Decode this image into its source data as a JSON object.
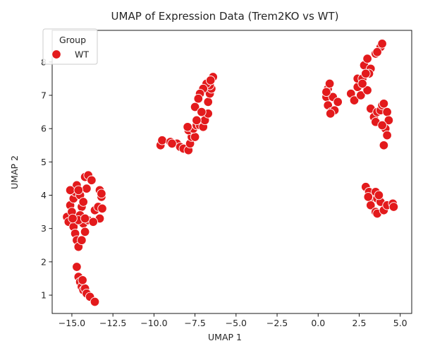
{
  "chart_data": {
    "type": "scatter",
    "title": "UMAP of Expression Data (Trem2KO vs WT)",
    "xlabel": "UMAP 1",
    "ylabel": "UMAP 2",
    "xlim": [
      -16.2,
      5.7
    ],
    "ylim": [
      0.45,
      8.95
    ],
    "xticks": [
      -15.0,
      -12.5,
      -10.0,
      -7.5,
      -5.0,
      -2.5,
      0.0,
      2.5,
      5.0
    ],
    "xtick_labels": [
      "−15.0",
      "−12.5",
      "−10.0",
      "−7.5",
      "−5.0",
      "−2.5",
      "0.0",
      "2.5",
      "5.0"
    ],
    "yticks": [
      1,
      2,
      3,
      4,
      5,
      6,
      7,
      8
    ],
    "ytick_labels": [
      "1",
      "2",
      "3",
      "4",
      "5",
      "6",
      "7",
      "8"
    ],
    "grid": false,
    "legend": {
      "title": "Group",
      "placement": "top-left",
      "entries": [
        {
          "label": "WT",
          "color": "#e31a1c"
        }
      ]
    },
    "series": [
      {
        "name": "WT",
        "color": "#e31a1c",
        "points": [
          [
            -15.3,
            3.35
          ],
          [
            -15.2,
            3.2
          ],
          [
            -15.1,
            3.7
          ],
          [
            -15.0,
            3.5
          ],
          [
            -14.9,
            3.05
          ],
          [
            -14.8,
            2.85
          ],
          [
            -14.7,
            2.65
          ],
          [
            -14.6,
            2.45
          ],
          [
            -14.9,
            3.9
          ],
          [
            -14.8,
            4.1
          ],
          [
            -14.7,
            4.3
          ],
          [
            -14.5,
            4.0
          ],
          [
            -14.4,
            3.65
          ],
          [
            -14.5,
            3.4
          ],
          [
            -14.3,
            3.15
          ],
          [
            -14.2,
            2.9
          ],
          [
            -14.4,
            2.65
          ],
          [
            -14.0,
            3.25
          ],
          [
            -14.1,
            4.2
          ],
          [
            -14.2,
            4.55
          ],
          [
            -14.0,
            4.6
          ],
          [
            -13.8,
            4.45
          ],
          [
            -13.6,
            3.55
          ],
          [
            -13.4,
            3.65
          ],
          [
            -13.3,
            4.15
          ],
          [
            -13.2,
            3.95
          ],
          [
            -13.15,
            3.6
          ],
          [
            -13.3,
            3.3
          ],
          [
            -13.7,
            3.2
          ],
          [
            -15.1,
            4.15
          ],
          [
            -14.6,
            3.25
          ],
          [
            -14.6,
            4.15
          ],
          [
            -14.2,
            3.3
          ],
          [
            -13.2,
            4.05
          ],
          [
            -14.95,
            3.3
          ],
          [
            -14.3,
            3.8
          ],
          [
            -14.7,
            1.85
          ],
          [
            -14.6,
            1.55
          ],
          [
            -14.5,
            1.4
          ],
          [
            -14.4,
            1.25
          ],
          [
            -14.3,
            1.15
          ],
          [
            -14.2,
            1.2
          ],
          [
            -14.1,
            1.05
          ],
          [
            -13.9,
            0.95
          ],
          [
            -13.6,
            0.8
          ],
          [
            -14.35,
            1.45
          ],
          [
            -9.6,
            5.5
          ],
          [
            -9.5,
            5.65
          ],
          [
            -9.0,
            5.6
          ],
          [
            -8.6,
            5.55
          ],
          [
            -8.4,
            5.45
          ],
          [
            -8.2,
            5.4
          ],
          [
            -7.9,
            5.35
          ],
          [
            -7.8,
            5.55
          ],
          [
            -7.7,
            5.75
          ],
          [
            -7.5,
            5.75
          ],
          [
            -7.9,
            5.95
          ],
          [
            -7.6,
            6.0
          ],
          [
            -7.4,
            6.1
          ],
          [
            -7.2,
            6.1
          ],
          [
            -7.0,
            6.05
          ],
          [
            -6.9,
            6.25
          ],
          [
            -6.7,
            6.45
          ],
          [
            -6.7,
            6.8
          ],
          [
            -6.6,
            7.05
          ],
          [
            -6.5,
            7.2
          ],
          [
            -6.6,
            7.3
          ],
          [
            -6.4,
            7.55
          ],
          [
            -6.8,
            7.35
          ],
          [
            -7.0,
            7.2
          ],
          [
            -7.2,
            7.05
          ],
          [
            -7.3,
            6.9
          ],
          [
            -7.5,
            6.65
          ],
          [
            -7.4,
            6.25
          ],
          [
            -7.1,
            6.5
          ],
          [
            -7.95,
            6.05
          ],
          [
            -6.55,
            7.45
          ],
          [
            -8.9,
            5.55
          ],
          [
            0.5,
            6.95
          ],
          [
            0.6,
            6.7
          ],
          [
            0.8,
            6.5
          ],
          [
            0.6,
            7.2
          ],
          [
            0.7,
            7.35
          ],
          [
            0.9,
            6.95
          ],
          [
            1.2,
            6.8
          ],
          [
            0.5,
            7.1
          ],
          [
            1.0,
            6.55
          ],
          [
            0.75,
            6.45
          ],
          [
            2.0,
            7.05
          ],
          [
            2.2,
            6.85
          ],
          [
            2.4,
            7.25
          ],
          [
            2.6,
            7.0
          ],
          [
            2.4,
            7.5
          ],
          [
            2.7,
            7.5
          ],
          [
            2.8,
            7.9
          ],
          [
            3.0,
            8.1
          ],
          [
            3.2,
            7.8
          ],
          [
            3.1,
            7.65
          ],
          [
            3.0,
            7.15
          ],
          [
            2.7,
            7.35
          ],
          [
            3.5,
            8.25
          ],
          [
            3.8,
            8.45
          ],
          [
            3.9,
            8.55
          ],
          [
            2.9,
            7.65
          ],
          [
            3.6,
            8.3
          ],
          [
            3.2,
            6.6
          ],
          [
            3.4,
            6.35
          ],
          [
            3.5,
            6.2
          ],
          [
            3.6,
            6.5
          ],
          [
            3.8,
            6.55
          ],
          [
            3.9,
            6.7
          ],
          [
            4.0,
            6.75
          ],
          [
            4.2,
            6.5
          ],
          [
            4.3,
            6.25
          ],
          [
            4.1,
            6.0
          ],
          [
            4.2,
            5.8
          ],
          [
            3.9,
            6.1
          ],
          [
            4.0,
            5.5
          ],
          [
            2.9,
            4.25
          ],
          [
            3.1,
            4.1
          ],
          [
            3.3,
            3.9
          ],
          [
            3.5,
            4.1
          ],
          [
            3.6,
            3.9
          ],
          [
            3.8,
            3.8
          ],
          [
            3.2,
            3.7
          ],
          [
            3.5,
            3.5
          ],
          [
            3.6,
            3.45
          ],
          [
            4.0,
            3.55
          ],
          [
            4.2,
            3.7
          ],
          [
            4.55,
            3.75
          ],
          [
            4.6,
            3.65
          ],
          [
            3.05,
            3.95
          ],
          [
            3.7,
            4.0
          ]
        ]
      }
    ]
  }
}
